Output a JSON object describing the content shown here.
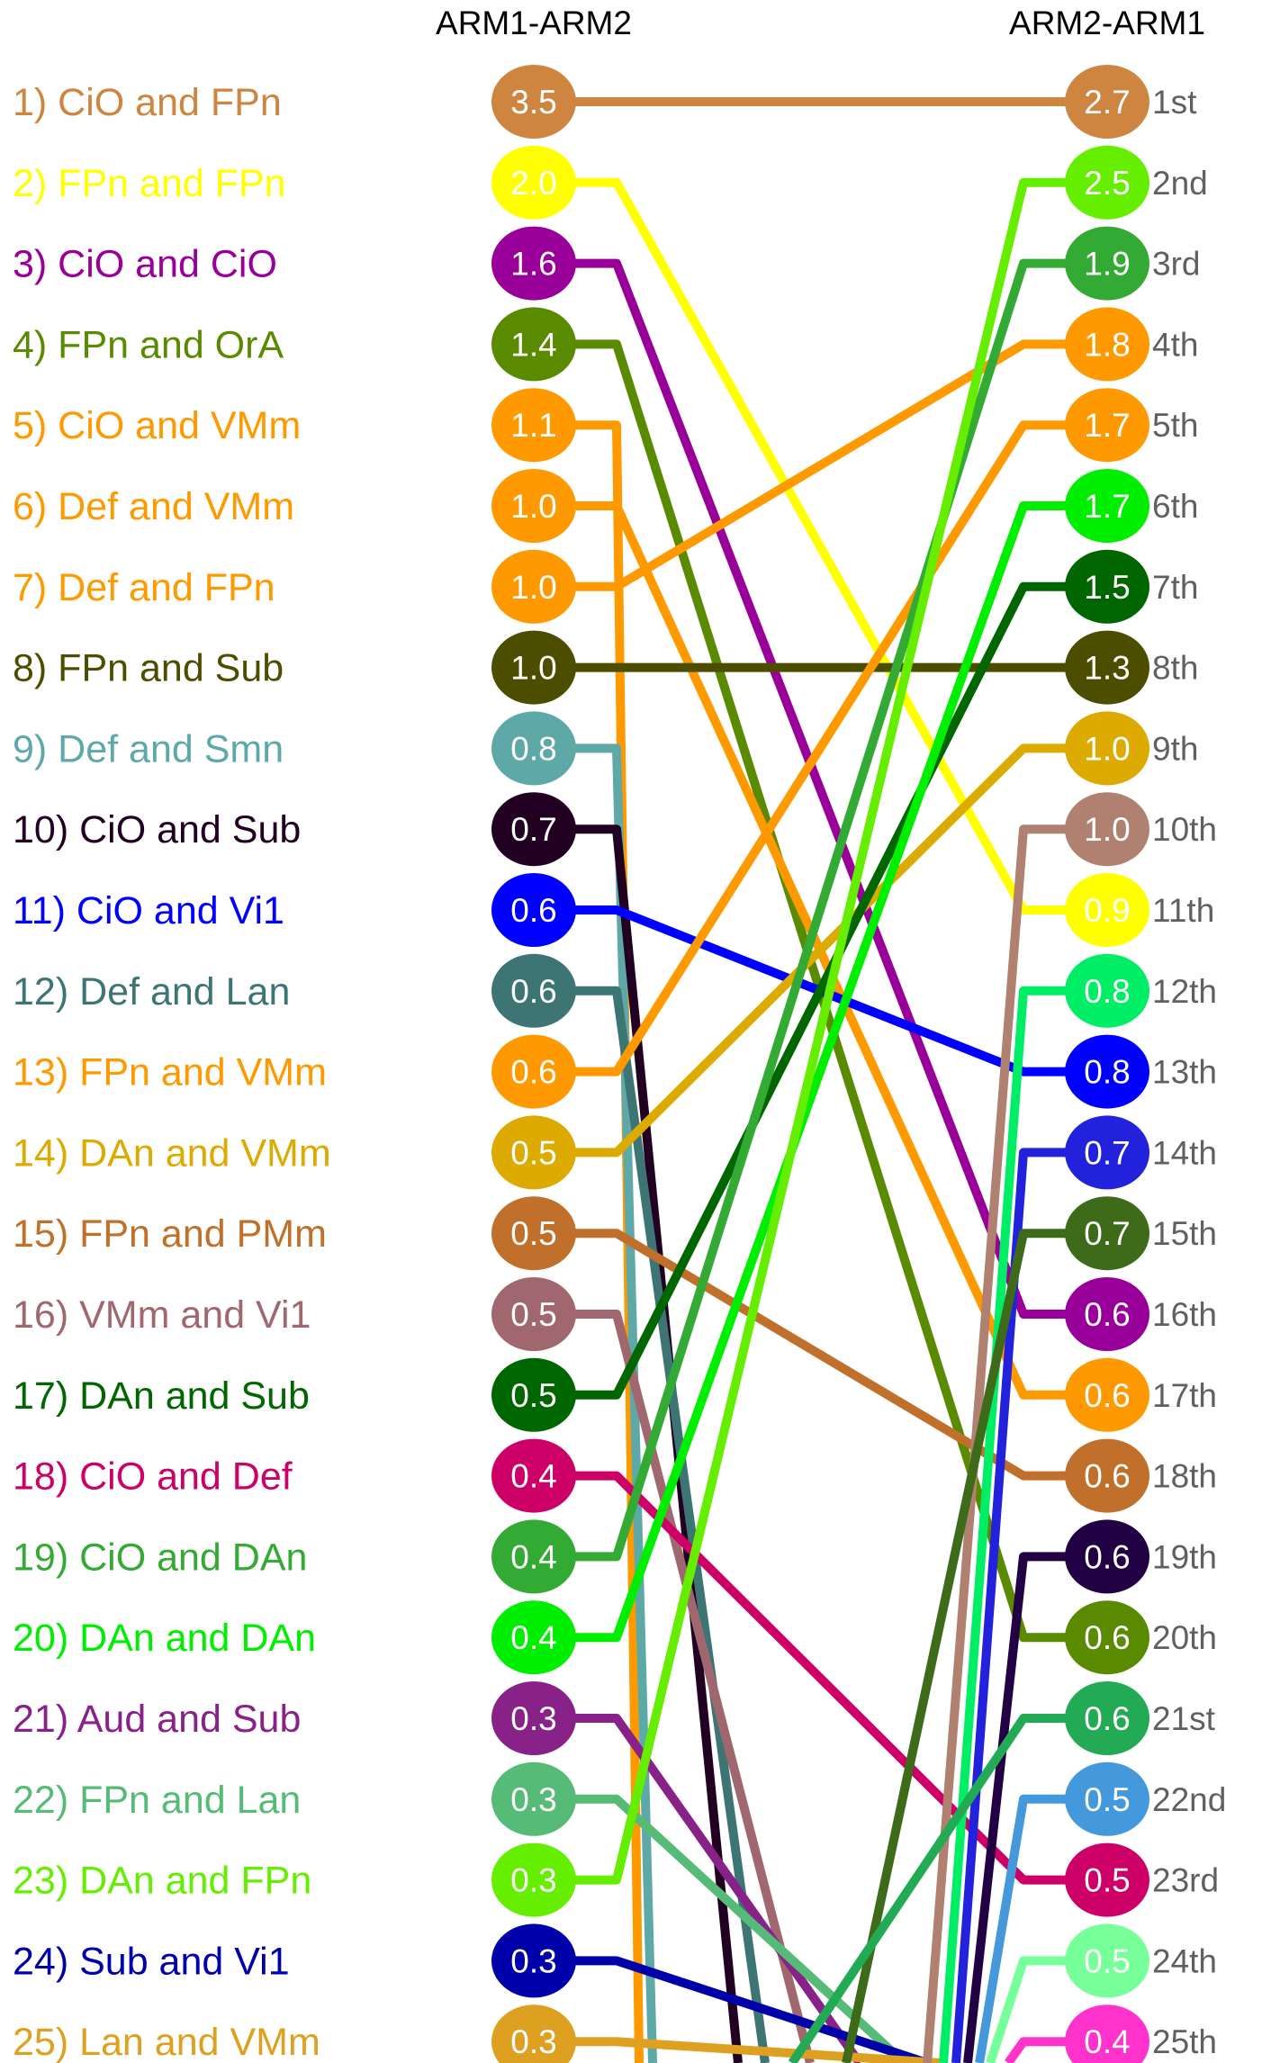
{
  "chart_data": {
    "type": "slope",
    "left_header": "ARM1-ARM2",
    "right_header": "ARM2-ARM1",
    "left": [
      {
        "label": "1) CiO and FPn",
        "value": "3.5",
        "color": "#CD853F",
        "to": 1
      },
      {
        "label": "2) FPn and FPn",
        "value": "2.0",
        "color": "#FFFF00",
        "to": 11
      },
      {
        "label": "3) CiO and CiO",
        "value": "1.6",
        "color": "#990099",
        "to": 16
      },
      {
        "label": "4) FPn and OrA",
        "value": "1.4",
        "color": "#5A8A00",
        "to": 20
      },
      {
        "label": "5) CiO and VMm",
        "value": "1.1",
        "color": "#FF9900",
        "to": 26
      },
      {
        "label": "6) Def and VMm",
        "value": "1.0",
        "color": "#FF9900",
        "to": 17
      },
      {
        "label": "7) Def and FPn",
        "value": "1.0",
        "color": "#FF9900",
        "to": 4
      },
      {
        "label": "8) FPn and Sub",
        "value": "1.0",
        "color": "#4D4D00",
        "to": 8
      },
      {
        "label": "9) Def and Smn",
        "value": "0.8",
        "color": "#5FA8A8",
        "to": 26
      },
      {
        "label": "10) CiO and Sub",
        "value": "0.7",
        "color": "#220022",
        "to": 26
      },
      {
        "label": "11) CiO and Vi1",
        "value": "0.6",
        "color": "#0000FF",
        "to": 13
      },
      {
        "label": "12) Def and Lan",
        "value": "0.6",
        "color": "#3D7575",
        "to": 26
      },
      {
        "label": "13) FPn and VMm",
        "value": "0.6",
        "color": "#FF9900",
        "to": 5
      },
      {
        "label": "14) DAn and VMm",
        "value": "0.5",
        "color": "#DDAA00",
        "to": 9
      },
      {
        "label": "15) FPn and PMm",
        "value": "0.5",
        "color": "#C0702A",
        "to": 18
      },
      {
        "label": "16) VMm and Vi1",
        "value": "0.5",
        "color": "#A0686E",
        "to": 26
      },
      {
        "label": "17) DAn and Sub",
        "value": "0.5",
        "color": "#006600",
        "to": 7
      },
      {
        "label": "18) CiO and Def",
        "value": "0.4",
        "color": "#CC0066",
        "to": 23
      },
      {
        "label": "19) CiO and DAn",
        "value": "0.4",
        "color": "#33AA33",
        "to": 3
      },
      {
        "label": "20) DAn and DAn",
        "value": "0.4",
        "color": "#00EE00",
        "to": 6
      },
      {
        "label": "21) Aud and Sub",
        "value": "0.3",
        "color": "#882288",
        "to": 26
      },
      {
        "label": "22) FPn and Lan",
        "value": "0.3",
        "color": "#55BB77",
        "to": 26
      },
      {
        "label": "23) DAn and FPn",
        "value": "0.3",
        "color": "#66EE00",
        "to": 2
      },
      {
        "label": "24) Sub and Vi1",
        "value": "0.3",
        "color": "#0000AA",
        "to": 26
      },
      {
        "label": "25) Lan and VMm",
        "value": "0.3",
        "color": "#DDA020",
        "to": 26
      }
    ],
    "right": [
      {
        "rank": "1st",
        "value": "2.7",
        "color": "#CD853F"
      },
      {
        "rank": "2nd",
        "value": "2.5",
        "color": "#66EE00"
      },
      {
        "rank": "3rd",
        "value": "1.9",
        "color": "#33AA33"
      },
      {
        "rank": "4th",
        "value": "1.8",
        "color": "#FF9900"
      },
      {
        "rank": "5th",
        "value": "1.7",
        "color": "#FF9900"
      },
      {
        "rank": "6th",
        "value": "1.7",
        "color": "#00EE00"
      },
      {
        "rank": "7th",
        "value": "1.5",
        "color": "#006600"
      },
      {
        "rank": "8th",
        "value": "1.3",
        "color": "#4D4D00"
      },
      {
        "rank": "9th",
        "value": "1.0",
        "color": "#DDAA00"
      },
      {
        "rank": "10th",
        "value": "1.0",
        "color": "#B08070",
        "from": 26
      },
      {
        "rank": "11th",
        "value": "0.9",
        "color": "#FFFF00"
      },
      {
        "rank": "12th",
        "value": "0.8",
        "color": "#00EE66",
        "from": 26
      },
      {
        "rank": "13th",
        "value": "0.8",
        "color": "#0000FF"
      },
      {
        "rank": "14th",
        "value": "0.7",
        "color": "#2222DD",
        "from": 26
      },
      {
        "rank": "15th",
        "value": "0.7",
        "color": "#3D6B1A",
        "from": 26
      },
      {
        "rank": "16th",
        "value": "0.6",
        "color": "#990099"
      },
      {
        "rank": "17th",
        "value": "0.6",
        "color": "#FF9900"
      },
      {
        "rank": "18th",
        "value": "0.6",
        "color": "#C0702A"
      },
      {
        "rank": "19th",
        "value": "0.6",
        "color": "#220044",
        "from": 26
      },
      {
        "rank": "20th",
        "value": "0.6",
        "color": "#5A8A00"
      },
      {
        "rank": "21st",
        "value": "0.6",
        "color": "#22AA55",
        "from": 26
      },
      {
        "rank": "22nd",
        "value": "0.5",
        "color": "#4499DD",
        "from": 26
      },
      {
        "rank": "23rd",
        "value": "0.5",
        "color": "#CC0066"
      },
      {
        "rank": "24th",
        "value": "0.5",
        "color": "#77FF99",
        "from": 26
      },
      {
        "rank": "25th",
        "value": "0.4",
        "color": "#FF33CC",
        "from": 26
      }
    ]
  }
}
